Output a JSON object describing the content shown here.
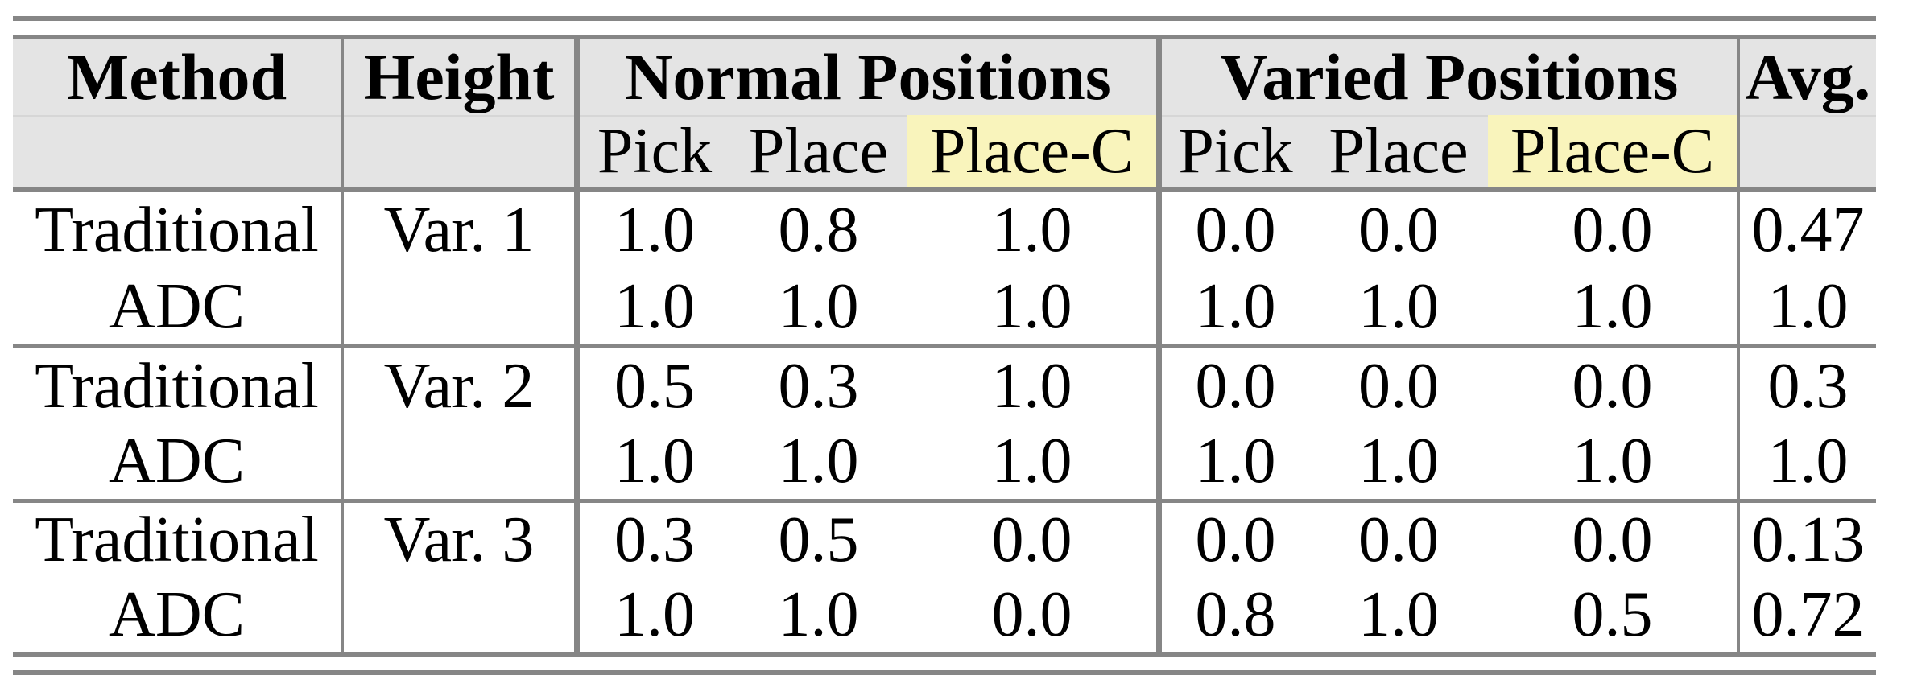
{
  "page": {
    "background": "#ffffff",
    "description_colors": {
      "header_bg": "#e4e4e4",
      "highlight_bg": "#f9f4bc",
      "rule": "#868686",
      "text": "#000000"
    }
  },
  "table": {
    "header": {
      "method": "Method",
      "height": "Height",
      "normal_group": "Normal Positions",
      "varied_group": "Varied Positions",
      "avg": "Avg.",
      "normal_pick": "Pick",
      "normal_place": "Place",
      "normal_place_c": "Place-C",
      "varied_pick": "Pick",
      "varied_place": "Place",
      "varied_place_c": "Place-C"
    },
    "rows": [
      {
        "method": "Traditional",
        "height": "Var. 1",
        "n_pick": "1.0",
        "n_place": "0.8",
        "n_place_c": "1.0",
        "v_pick": "0.0",
        "v_place": "0.0",
        "v_place_c": "0.0",
        "avg": "0.47"
      },
      {
        "method": "ADC",
        "height": "",
        "n_pick": "1.0",
        "n_place": "1.0",
        "n_place_c": "1.0",
        "v_pick": "1.0",
        "v_place": "1.0",
        "v_place_c": "1.0",
        "avg": "1.0"
      },
      {
        "method": "Traditional",
        "height": "Var. 2",
        "n_pick": "0.5",
        "n_place": "0.3",
        "n_place_c": "1.0",
        "v_pick": "0.0",
        "v_place": "0.0",
        "v_place_c": "0.0",
        "avg": "0.3"
      },
      {
        "method": "ADC",
        "height": "",
        "n_pick": "1.0",
        "n_place": "1.0",
        "n_place_c": "1.0",
        "v_pick": "1.0",
        "v_place": "1.0",
        "v_place_c": "1.0",
        "avg": "1.0"
      },
      {
        "method": "Traditional",
        "height": "Var. 3",
        "n_pick": "0.3",
        "n_place": "0.5",
        "n_place_c": "0.0",
        "v_pick": "0.0",
        "v_place": "0.0",
        "v_place_c": "0.0",
        "avg": "0.13"
      },
      {
        "method": "ADC",
        "height": "",
        "n_pick": "1.0",
        "n_place": "1.0",
        "n_place_c": "0.0",
        "v_pick": "0.8",
        "v_place": "1.0",
        "v_place_c": "0.5",
        "avg": "0.72"
      }
    ]
  },
  "chart_data": {
    "type": "table",
    "title": "",
    "column_groups": [
      "Method",
      "Height",
      "Normal Positions (Pick, Place, Place-C)",
      "Varied Positions (Pick, Place, Place-C)",
      "Avg."
    ],
    "highlighted_columns": [
      "Place-C (Normal)",
      "Place-C (Varied)"
    ],
    "rows": [
      [
        "Traditional",
        "Var. 1",
        1.0,
        0.8,
        1.0,
        0.0,
        0.0,
        0.0,
        0.47
      ],
      [
        "ADC",
        "Var. 1",
        1.0,
        1.0,
        1.0,
        1.0,
        1.0,
        1.0,
        1.0
      ],
      [
        "Traditional",
        "Var. 2",
        0.5,
        0.3,
        1.0,
        0.0,
        0.0,
        0.0,
        0.3
      ],
      [
        "ADC",
        "Var. 2",
        1.0,
        1.0,
        1.0,
        1.0,
        1.0,
        1.0,
        1.0
      ],
      [
        "Traditional",
        "Var. 3",
        0.3,
        0.5,
        0.0,
        0.0,
        0.0,
        0.0,
        0.13
      ],
      [
        "ADC",
        "Var. 3",
        1.0,
        1.0,
        0.0,
        0.8,
        1.0,
        0.5,
        0.72
      ]
    ]
  }
}
